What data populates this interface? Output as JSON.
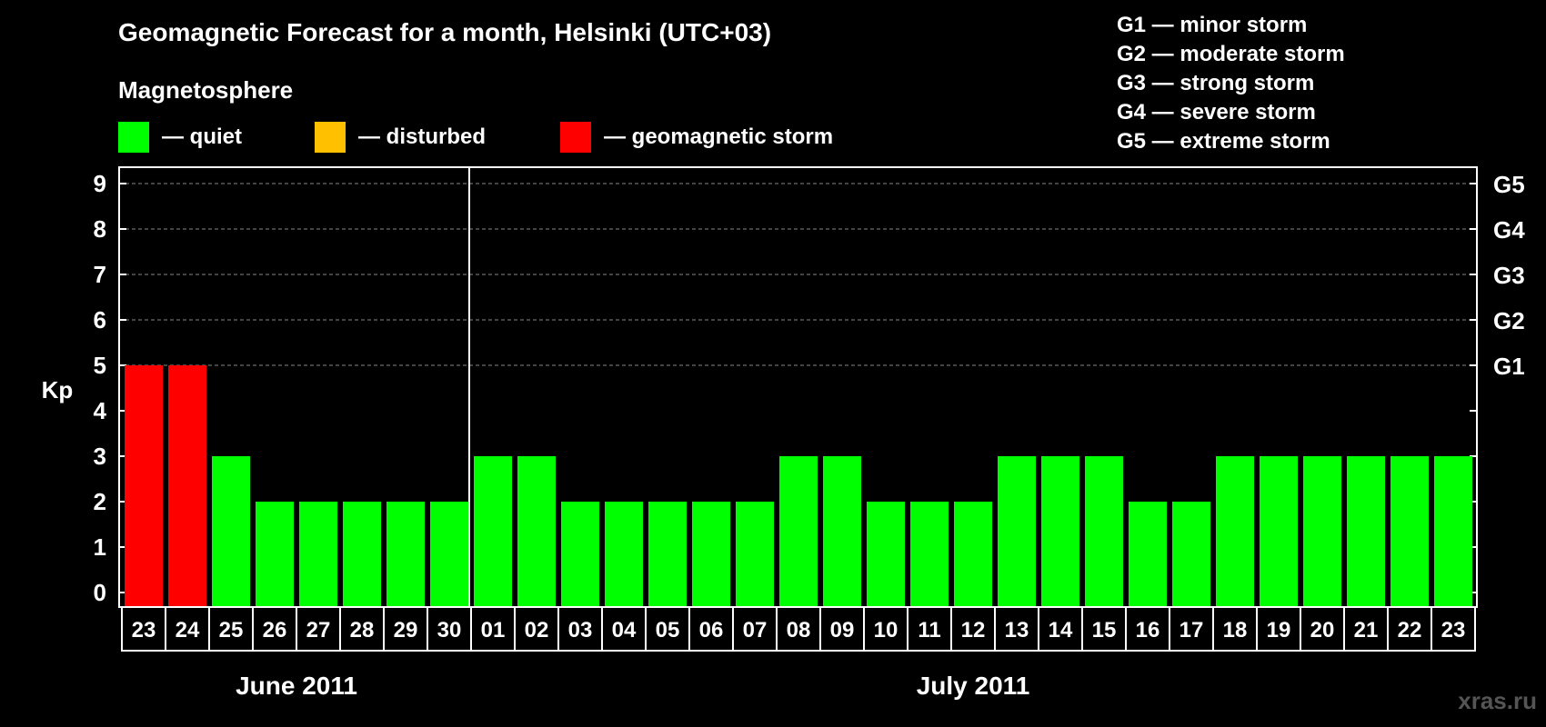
{
  "chart_data": {
    "type": "bar",
    "title": "Geomagnetic Forecast for a month, Helsinki (UTC+03)",
    "ylabel": "Kp",
    "ylim": [
      0,
      9
    ],
    "yticks": [
      "0",
      "1",
      "2",
      "3",
      "4",
      "5",
      "6",
      "7",
      "8",
      "9"
    ],
    "right_axis_labels": [
      {
        "kp": 5,
        "label": "G1"
      },
      {
        "kp": 6,
        "label": "G2"
      },
      {
        "kp": 7,
        "label": "G3"
      },
      {
        "kp": 8,
        "label": "G4"
      },
      {
        "kp": 9,
        "label": "G5"
      }
    ],
    "categories": [
      "23",
      "24",
      "25",
      "26",
      "27",
      "28",
      "29",
      "30",
      "01",
      "02",
      "03",
      "04",
      "05",
      "06",
      "07",
      "08",
      "09",
      "10",
      "11",
      "12",
      "13",
      "14",
      "15",
      "16",
      "17",
      "18",
      "19",
      "20",
      "21",
      "22",
      "23"
    ],
    "values": [
      5,
      5,
      3,
      2,
      2,
      2,
      2,
      2,
      3,
      3,
      2,
      2,
      2,
      2,
      2,
      3,
      3,
      2,
      2,
      2,
      3,
      3,
      3,
      2,
      2,
      3,
      3,
      3,
      3,
      3,
      3
    ],
    "months": [
      {
        "label": "June 2011",
        "start": 0,
        "end": 7
      },
      {
        "label": "July 2011",
        "start": 8,
        "end": 30
      }
    ],
    "month_divider_after": 7,
    "grid": "dashed at Kp 5-9"
  },
  "legend": {
    "heading": "Magnetosphere",
    "items": [
      {
        "label": "— quiet",
        "color": "#00ff00"
      },
      {
        "label": "— disturbed",
        "color": "#ffc000"
      },
      {
        "label": "— geomagnetic storm",
        "color": "#ff0000"
      }
    ]
  },
  "storm_scale": [
    "G1 — minor storm",
    "G2 — moderate storm",
    "G3 — strong storm",
    "G4 — severe storm",
    "G5 — extreme storm"
  ],
  "colors": {
    "quiet": "#00ff00",
    "disturbed": "#ffc000",
    "storm": "#ff0000"
  },
  "watermark": "xras.ru"
}
